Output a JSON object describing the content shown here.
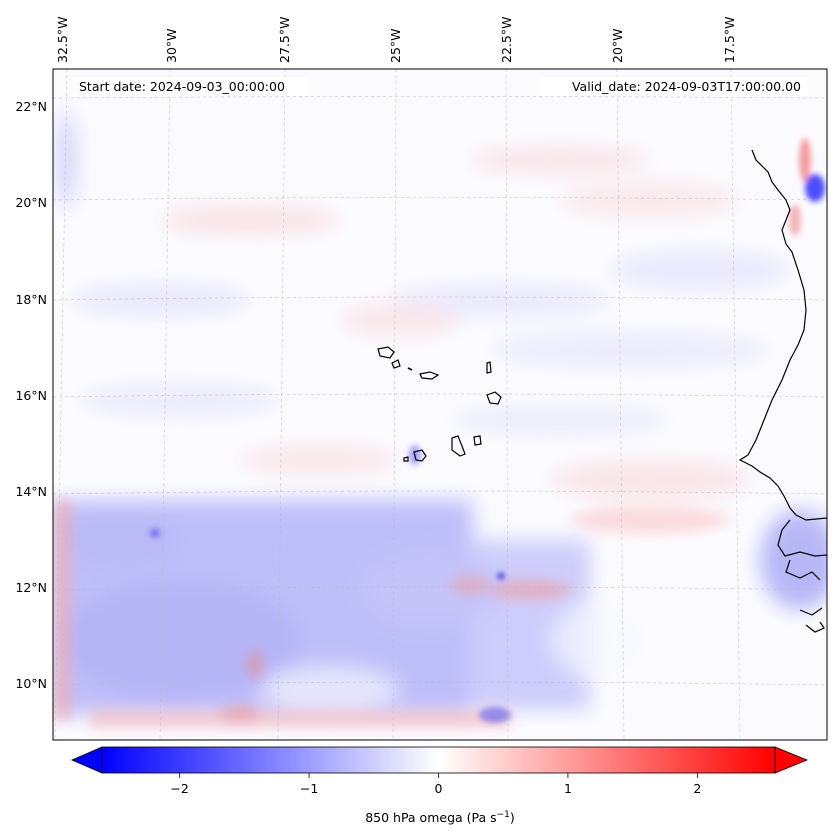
{
  "map": {
    "start_date": "Start date: 2024-09-03_00:00:00",
    "valid_date": "Valid_date: 2024-09-03T17:00:00.00",
    "lon_labels": [
      "32.5°W",
      "30°W",
      "27.5°W",
      "25°W",
      "22.5°W",
      "20°W",
      "17.5°W"
    ],
    "lat_labels": [
      "22°N",
      "20°N",
      "18°N",
      "16°N",
      "14°N",
      "12°N",
      "10°N"
    ],
    "gridlines": true
  },
  "colorbar": {
    "ticks": [
      "−2",
      "−1",
      "0",
      "1",
      "2"
    ],
    "tick_values": [
      -2,
      -1,
      0,
      1,
      2
    ],
    "range": [
      -2.6,
      2.6
    ],
    "extend": "both",
    "cmap_colors": [
      "#0000ff",
      "#ffffff",
      "#ff0000"
    ],
    "label_prefix": "850 hPa omega (Pa s",
    "label_exp": "−1",
    "label_suffix": ")"
  }
}
